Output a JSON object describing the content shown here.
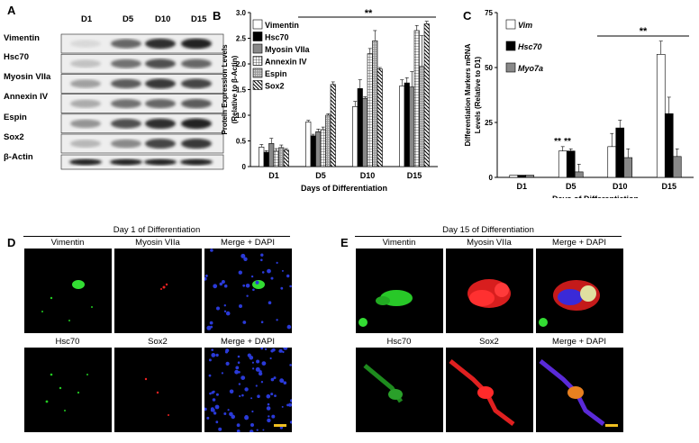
{
  "panel_letters": {
    "a": "A",
    "b": "B",
    "c": "C",
    "d": "D",
    "e": "E"
  },
  "blot": {
    "lanes": [
      "D1",
      "D5",
      "D10",
      "D15"
    ],
    "rows": [
      "Vimentin",
      "Hsc70",
      "Myosin VIIa",
      "Annexin IV",
      "Espin",
      "Sox2",
      "β-Actin"
    ]
  },
  "chart_data": [
    {
      "type": "bar",
      "categories": [
        "D1",
        "D5",
        "D10",
        "D15"
      ],
      "xlabel": "Days of Differentiation",
      "ylabel": "Protein Expression Levels (Relative to β-Actin)",
      "ylabel_lines": [
        "Protein Expression Levels",
        "(Relative to β-Actin)"
      ],
      "ylim": [
        0,
        3.0
      ],
      "yticks": [
        "0",
        "0.5",
        "1.0",
        "1.5",
        "2.0",
        "2.5",
        "3.0"
      ],
      "significance": "**",
      "series": [
        {
          "name": "Vimentin",
          "values": [
            0.38,
            0.87,
            1.17,
            1.57
          ],
          "errors": [
            0.05,
            0.03,
            0.1,
            0.12
          ],
          "fill": "#ffffff"
        },
        {
          "name": "Hsc70",
          "values": [
            0.28,
            0.6,
            1.52,
            1.63
          ],
          "errors": [
            0.03,
            0.03,
            0.17,
            0.1
          ],
          "fill": "#000000"
        },
        {
          "name": "Myosin VIIa",
          "values": [
            0.45,
            0.68,
            1.33,
            1.55
          ],
          "errors": [
            0.1,
            0.05,
            0.03,
            0.3
          ],
          "fill": "#888888"
        },
        {
          "name": "Annexin IV",
          "values": [
            0.3,
            0.72,
            2.2,
            2.65
          ],
          "errors": [
            0.05,
            0.05,
            0.1,
            0.1
          ],
          "fill": "hatch-grid"
        },
        {
          "name": "Espin",
          "values": [
            0.37,
            1.0,
            2.45,
            1.95
          ],
          "errors": [
            0.05,
            0.03,
            0.2,
            0.6
          ],
          "fill": "hatch-dots"
        },
        {
          "name": "Sox2",
          "values": [
            0.32,
            1.6,
            1.9,
            2.78
          ],
          "errors": [
            0.03,
            0.05,
            0.03,
            0.05
          ],
          "fill": "hatch-diag"
        }
      ]
    },
    {
      "type": "bar",
      "categories": [
        "D1",
        "D5",
        "D10",
        "D15"
      ],
      "xlabel": "Days of Differentiation",
      "ylabel": "Differentiation Markers mRNA Levels (Relative to D1)",
      "ylabel_lines": [
        "Differentiation Markers mRNA",
        "Levels (Relative to D1)"
      ],
      "ylim": [
        0,
        75
      ],
      "yticks": [
        "0",
        "25",
        "50",
        "75"
      ],
      "significance": "**",
      "series": [
        {
          "name": "Vim",
          "values": [
            1,
            12,
            14,
            56
          ],
          "errors": [
            0,
            2,
            6,
            6
          ],
          "fill": "#ffffff"
        },
        {
          "name": "Hsc70",
          "values": [
            1,
            12,
            22.5,
            29
          ],
          "errors": [
            0,
            1,
            3.5,
            7.5
          ],
          "fill": "#000000"
        },
        {
          "name": "Myo7a",
          "values": [
            1,
            2.5,
            9,
            9.5
          ],
          "errors": [
            0,
            3.5,
            4,
            3.5
          ],
          "fill": "#888888"
        }
      ],
      "annotations": [
        "**",
        "**"
      ]
    }
  ],
  "panel_d": {
    "title": "Day 1 of Differentiation",
    "col_titles": [
      "Vimentin",
      "Myosin VIIa",
      "Merge + DAPI"
    ],
    "row2_titles": [
      "Hsc70",
      "Sox2",
      "Merge + DAPI"
    ]
  },
  "panel_e": {
    "title": "Day 15 of Differentiation",
    "col_titles": [
      "Vimentin",
      "Myosin VIIa",
      "Merge + DAPI"
    ],
    "row2_titles": [
      "Hsc70",
      "Sox2",
      "Merge + DAPI"
    ]
  },
  "colors": {
    "scale_bar": "#f0c020",
    "green": "#2ecc40",
    "red": "#e8231b",
    "blue": "#2a3ad8"
  }
}
